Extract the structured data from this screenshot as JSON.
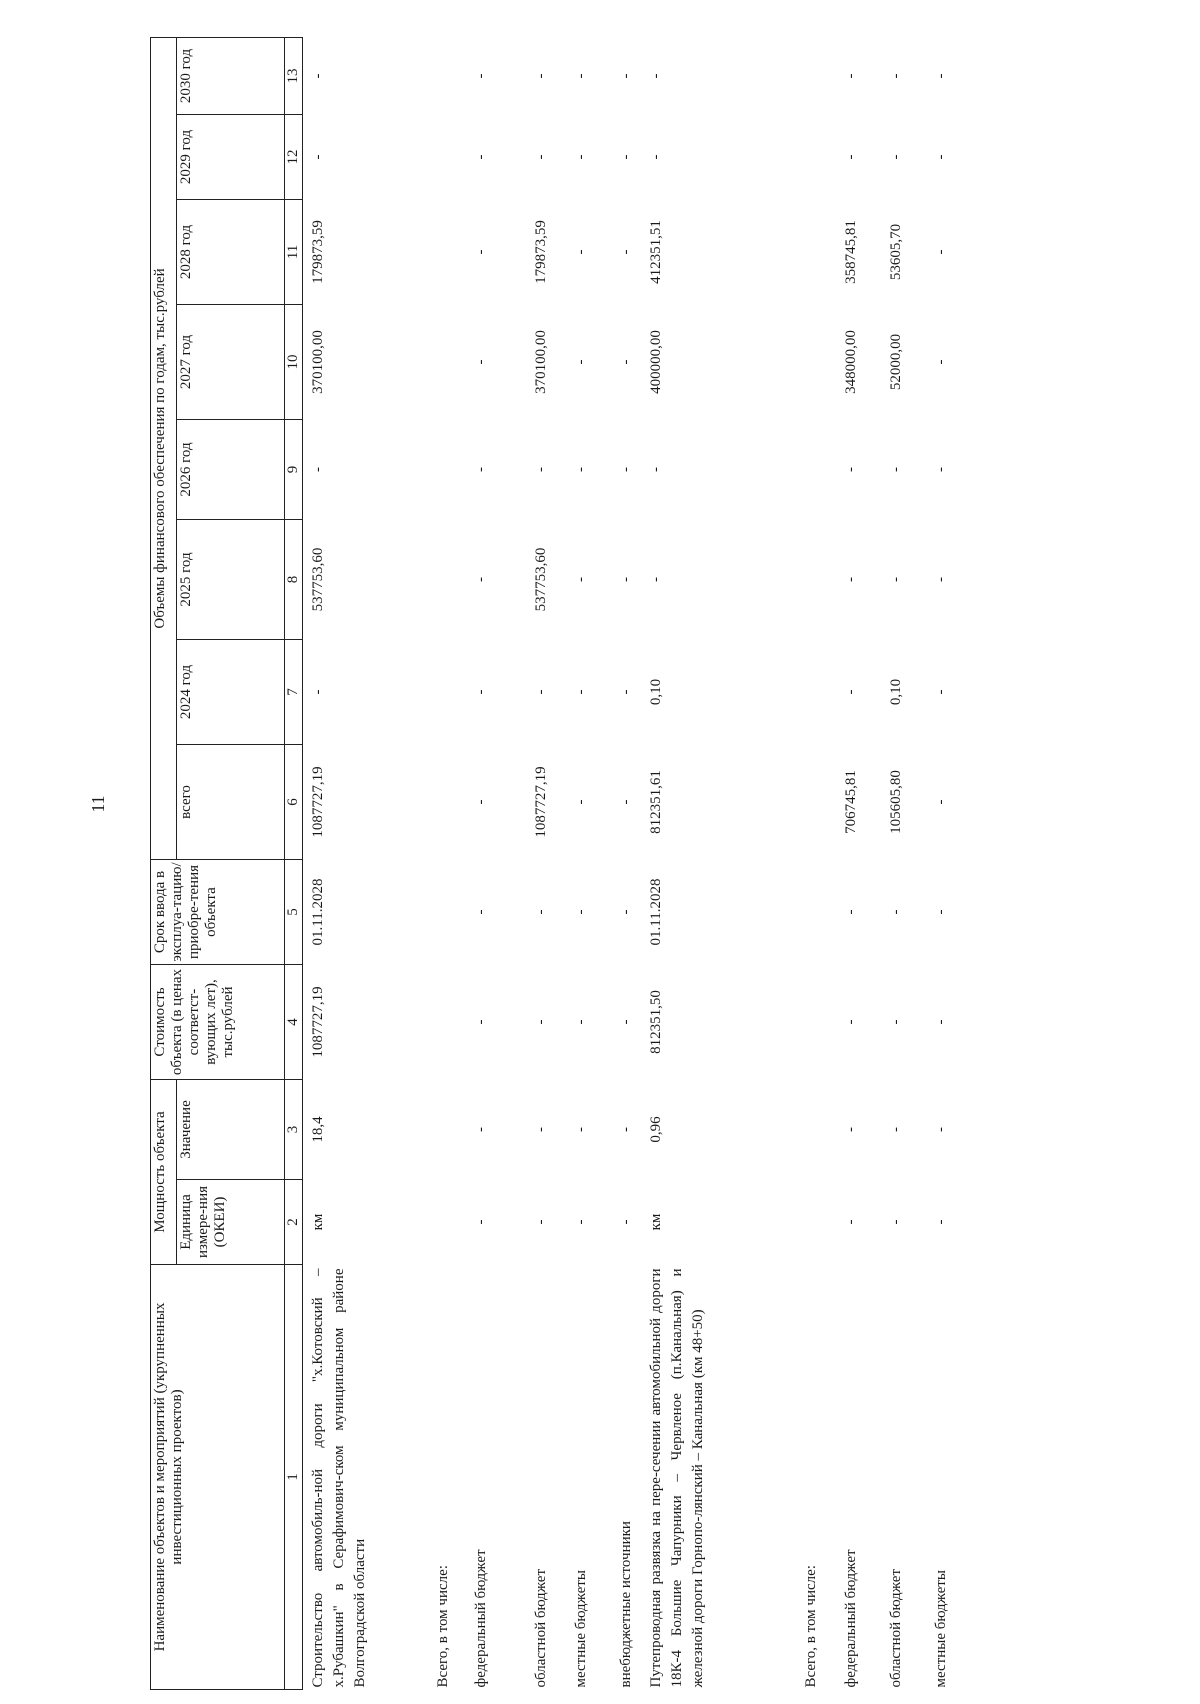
{
  "page_number": "11",
  "header": {
    "col1": "Наименование объектов и мероприятий (укрупненных инвестиционных проектов)",
    "capacity_group": "Мощность объекта",
    "col2": "Единица измере-ния (ОКЕИ)",
    "col3": "Значение",
    "col4": "Стоимость объекта (в ценах соответст-вующих лет), тыс.рублей",
    "col5": "Срок ввода в эксплуа-тацию/ приобре-тения объекта",
    "finance_group": "Объемы финансового обеспечения по годам, тыс.рублей",
    "col6": "всего",
    "years": [
      "2024 год",
      "2025 год",
      "2026 год",
      "2027 год",
      "2028 год",
      "2029 год",
      "2030 год"
    ],
    "numbers": [
      "1",
      "2",
      "3",
      "4",
      "5",
      "6",
      "7",
      "8",
      "9",
      "10",
      "11",
      "12",
      "13"
    ]
  },
  "rows": [
    {
      "name": "Строительство автомобиль-ной дороги \"х.Котовский – х.Рубашкин\" в Серафимович-ском муниципальном районе Волгоградской области",
      "values": [
        "км",
        "18,4",
        "1087727,19",
        "01.11.2028",
        "1087727,19",
        "-",
        "537753,60",
        "-",
        "370100,00",
        "179873,59",
        "-",
        "-"
      ]
    },
    {
      "name": "Всего, в том числе:",
      "values": [
        "",
        "",
        "",
        "",
        "",
        "",
        "",
        "",
        "",
        "",
        "",
        ""
      ]
    },
    {
      "name": "федеральный бюджет",
      "values": [
        "-",
        "-",
        "-",
        "-",
        "-",
        "-",
        "-",
        "-",
        "-",
        "-",
        "-",
        "-"
      ]
    },
    {
      "name": "областной бюджет",
      "values": [
        "-",
        "-",
        "-",
        "-",
        "1087727,19",
        "-",
        "537753,60",
        "-",
        "370100,00",
        "179873,59",
        "-",
        "-"
      ]
    },
    {
      "name": "местные бюджеты",
      "values": [
        "-",
        "-",
        "-",
        "-",
        "-",
        "-",
        "-",
        "-",
        "-",
        "-",
        "-",
        "-"
      ]
    },
    {
      "name": "внебюджетные источники",
      "values": [
        "-",
        "-",
        "-",
        "-",
        "-",
        "-",
        "-",
        "-",
        "-",
        "-",
        "-",
        "-"
      ]
    },
    {
      "name": "Путепроводная развязка на пере-сечении автомобильной дороги 18К-4 Большие Чапурники – Червленое (п.Канальная) и железной дороги Горнопо-лянский – Канальная (км 48+50)",
      "values": [
        "км",
        "0,96",
        "812351,50",
        "01.11.2028",
        "812351,61",
        "0,10",
        "-",
        "-",
        "400000,00",
        "412351,51",
        "-",
        "-"
      ]
    },
    {
      "name": "Всего, в том числе:",
      "values": [
        "",
        "",
        "",
        "",
        "",
        "",
        "",
        "",
        "",
        "",
        "",
        ""
      ]
    },
    {
      "name": "федеральный бюджет",
      "values": [
        "-",
        "-",
        "-",
        "-",
        "706745,81",
        "-",
        "-",
        "-",
        "348000,00",
        "358745,81",
        "-",
        "-"
      ]
    },
    {
      "name": "областной бюджет",
      "values": [
        "-",
        "-",
        "-",
        "-",
        "105605,80",
        "0,10",
        "-",
        "-",
        "52000,00",
        "53605,70",
        "-",
        "-"
      ]
    },
    {
      "name": "местные бюджеты",
      "values": [
        "-",
        "-",
        "-",
        "-",
        "-",
        "-",
        "-",
        "-",
        "-",
        "-",
        "-",
        "-"
      ]
    }
  ]
}
